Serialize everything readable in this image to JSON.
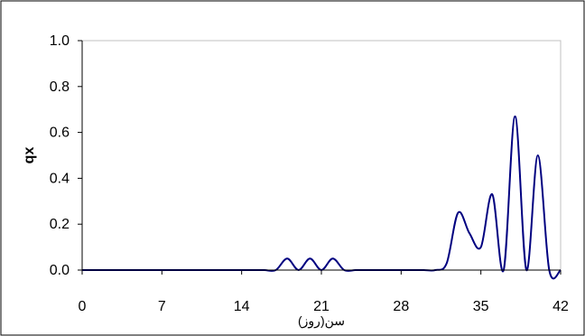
{
  "chart_data": {
    "type": "line",
    "title": "",
    "xlabel": "سن(روز)",
    "ylabel": "qx",
    "xlim": [
      0,
      42
    ],
    "ylim": [
      0,
      1
    ],
    "x_ticks": [
      0,
      7,
      14,
      21,
      28,
      35,
      42
    ],
    "y_ticks": [
      "0.0",
      "0.2",
      "0.4",
      "0.6",
      "0.8",
      "1.0"
    ],
    "grid": false,
    "legend": "none",
    "series": [
      {
        "color": "#000080",
        "points": [
          [
            0,
            0
          ],
          [
            1,
            0
          ],
          [
            2,
            0
          ],
          [
            3,
            0
          ],
          [
            4,
            0
          ],
          [
            5,
            0
          ],
          [
            6,
            0
          ],
          [
            7,
            0
          ],
          [
            8,
            0
          ],
          [
            9,
            0
          ],
          [
            10,
            0
          ],
          [
            11,
            0
          ],
          [
            12,
            0
          ],
          [
            13,
            0
          ],
          [
            14,
            0
          ],
          [
            15,
            0
          ],
          [
            16,
            0
          ],
          [
            17,
            0
          ],
          [
            18,
            0.05
          ],
          [
            19,
            0
          ],
          [
            20,
            0.05
          ],
          [
            21,
            0
          ],
          [
            22,
            0.05
          ],
          [
            23,
            0
          ],
          [
            24,
            0
          ],
          [
            25,
            0
          ],
          [
            26,
            0
          ],
          [
            27,
            0
          ],
          [
            28,
            0
          ],
          [
            29,
            0
          ],
          [
            30,
            0
          ],
          [
            31,
            0
          ],
          [
            32,
            0.03
          ],
          [
            33,
            0.25
          ],
          [
            34,
            0.16
          ],
          [
            35,
            0.1
          ],
          [
            36,
            0.33
          ],
          [
            37,
            0
          ],
          [
            38,
            0.67
          ],
          [
            39,
            0
          ],
          [
            40,
            0.5
          ],
          [
            41,
            0
          ],
          [
            42,
            0
          ]
        ]
      }
    ]
  }
}
